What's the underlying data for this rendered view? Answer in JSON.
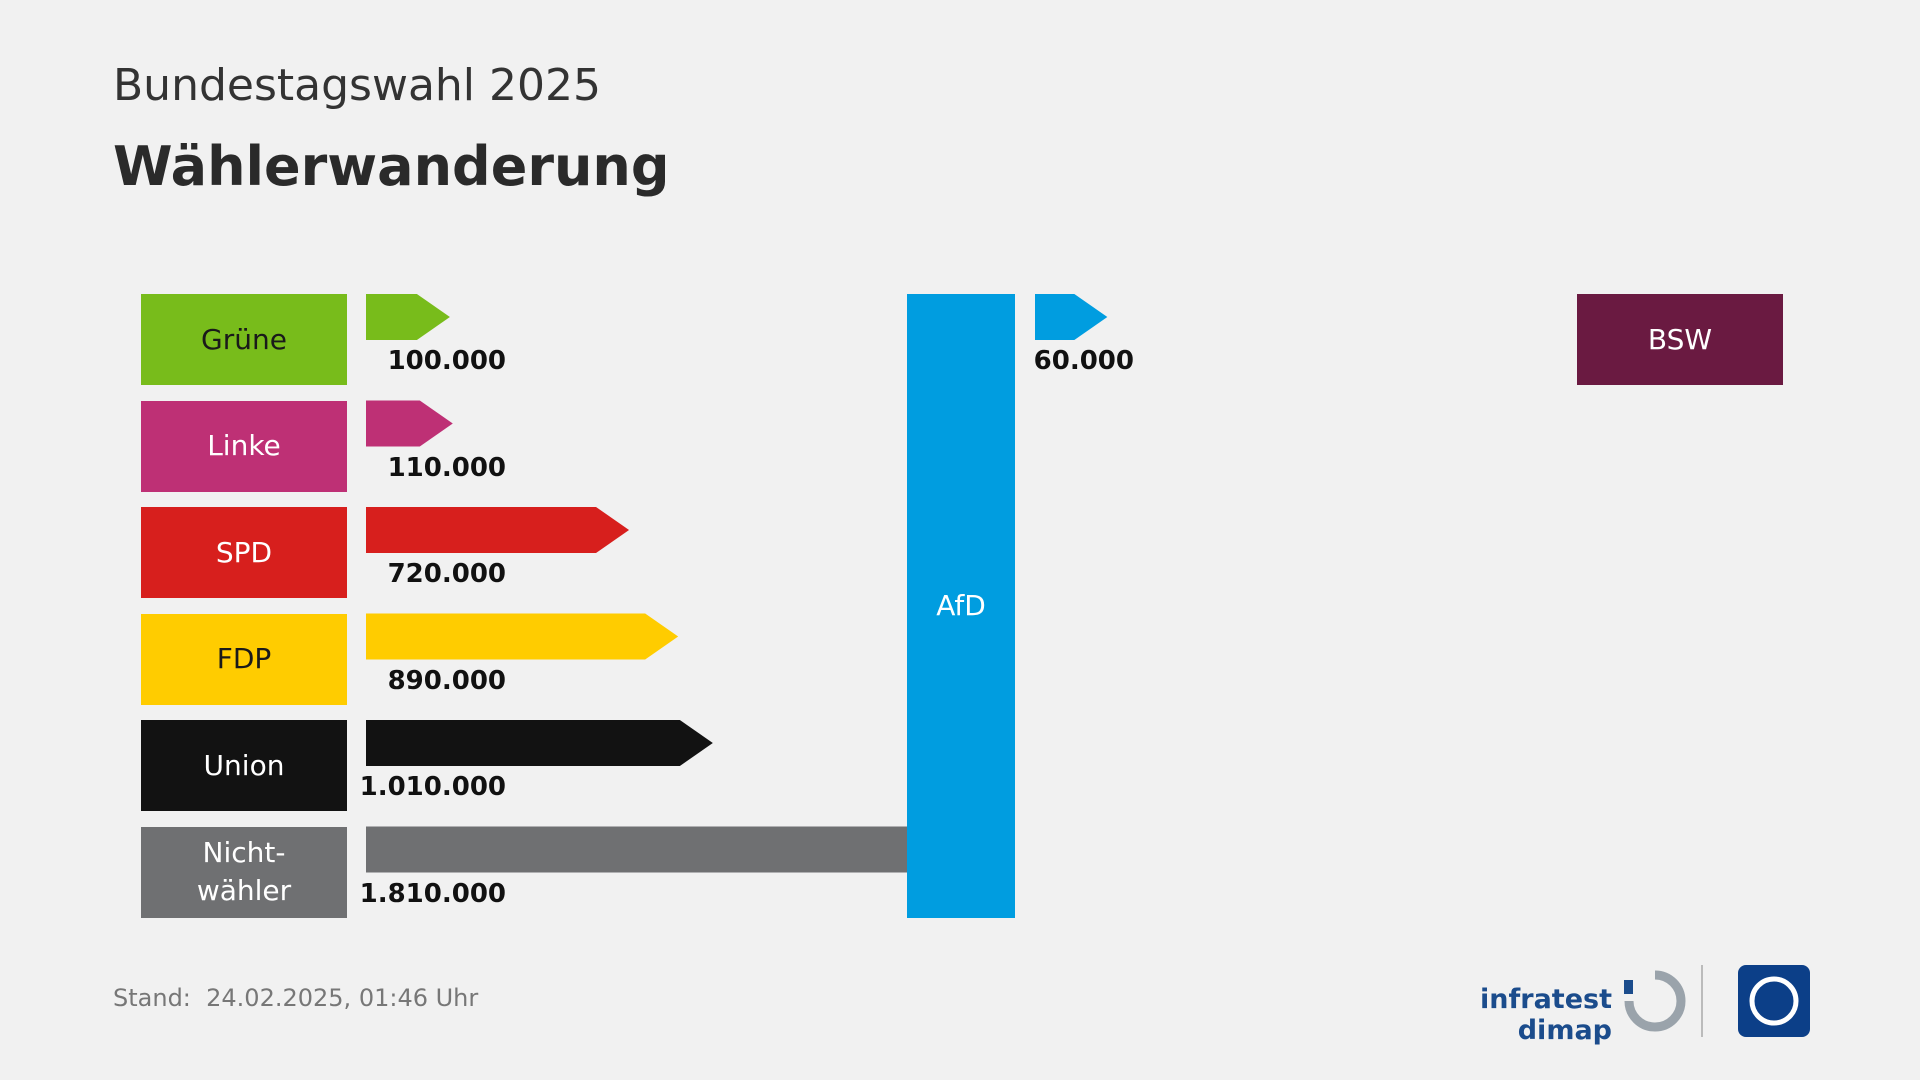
{
  "chart_data": {
    "type": "flow",
    "subtitle": "Bundestagswahl 2025",
    "title": "Wählerwanderung",
    "target": {
      "name": "AfD",
      "color": "#009de0",
      "label_color": "#ffffff"
    },
    "sources": [
      {
        "name": "Grüne",
        "color": "#78bc1b",
        "label_color": "#1a1a1a",
        "value": 100000,
        "value_label": "100.000"
      },
      {
        "name": "Linke",
        "color": "#be3075",
        "label_color": "#ffffff",
        "value": 110000,
        "value_label": "110.000"
      },
      {
        "name": "SPD",
        "color": "#d71f1d",
        "label_color": "#ffffff",
        "value": 720000,
        "value_label": "720.000"
      },
      {
        "name": "FDP",
        "color": "#ffcc00",
        "label_color": "#1a1a1a",
        "value": 890000,
        "value_label": "890.000"
      },
      {
        "name": "Union",
        "color": "#121212",
        "label_color": "#ffffff",
        "value": 1010000,
        "value_label": "1.010.000"
      },
      {
        "name": "Nicht-\nwähler",
        "color": "#6f7072",
        "label_color": "#ffffff",
        "value": 1810000,
        "value_label": "1.810.000"
      }
    ],
    "outflows": [
      {
        "name": "BSW",
        "color": "#6a1a41",
        "label_color": "#ffffff",
        "arrow_color": "#009de0",
        "value": 60000,
        "value_label": "60.000"
      }
    ],
    "footer": "Stand:  24.02.2025, 01:46 Uhr",
    "source_logo": "infratest dimap"
  }
}
